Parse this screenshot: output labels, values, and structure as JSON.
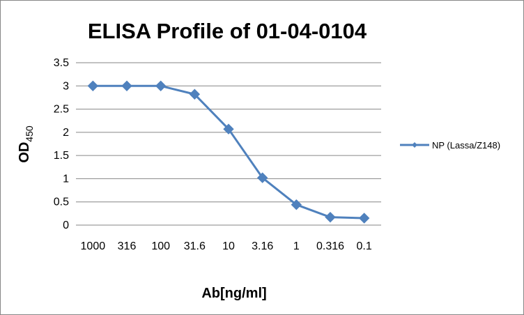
{
  "chart_data": {
    "type": "line",
    "title": "ELISA Profile of 01-04-0104",
    "xlabel": "Ab[ng/ml]",
    "ylabel_main": "OD",
    "ylabel_sub": "450",
    "categories": [
      "1000",
      "316",
      "100",
      "31.6",
      "10",
      "3.16",
      "1",
      "0.316",
      "0.1"
    ],
    "series": [
      {
        "name": "NP (Lassa/Z148)",
        "values": [
          3.0,
          3.0,
          3.0,
          2.82,
          2.07,
          1.02,
          0.44,
          0.17,
          0.15
        ],
        "color": "#4F81BD"
      }
    ],
    "ylim": [
      0,
      3.5
    ],
    "yticks": [
      "0",
      "0.5",
      "1",
      "1.5",
      "2",
      "2.5",
      "3",
      "3.5"
    ],
    "grid": true,
    "legend": "right"
  }
}
